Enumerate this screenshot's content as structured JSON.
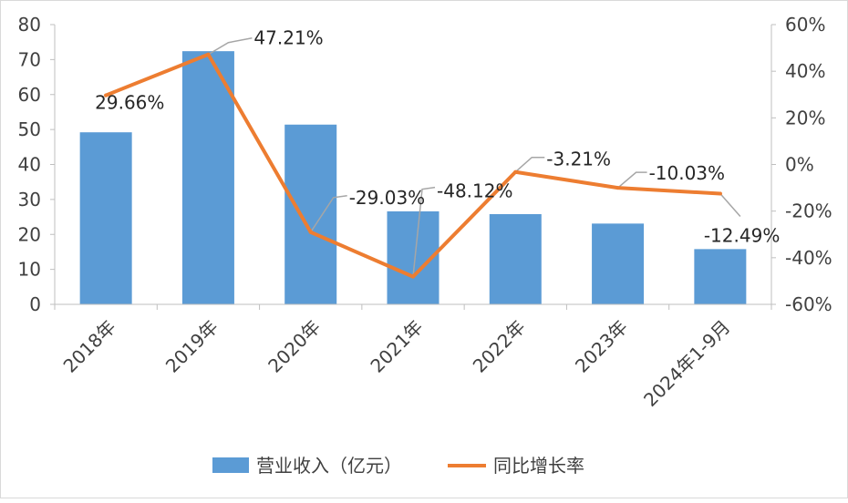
{
  "chart_data": {
    "type": "bar+line",
    "categories": [
      "2018年",
      "2019年",
      "2020年",
      "2021年",
      "2022年",
      "2023年",
      "2024年1-9月"
    ],
    "series": [
      {
        "name": "营业收入（亿元）",
        "type": "bar",
        "axis": "left",
        "color": "#5b9bd5",
        "values": [
          49.2,
          72.4,
          51.4,
          26.6,
          25.8,
          23.1,
          15.8
        ]
      },
      {
        "name": "同比增长率",
        "type": "line",
        "axis": "right",
        "color": "#ed7d31",
        "values": [
          29.66,
          47.21,
          -29.03,
          -48.12,
          -3.21,
          -10.03,
          -12.49
        ],
        "labels": [
          "29.66%",
          "47.21%",
          "-29.03%",
          "-48.12%",
          "-3.21%",
          "-10.03%",
          "-12.49%"
        ]
      }
    ],
    "y_left": {
      "ylim": [
        0,
        80
      ],
      "ticks": [
        "0",
        "10",
        "20",
        "30",
        "40",
        "50",
        "60",
        "70",
        "80"
      ]
    },
    "y_right": {
      "ylim": [
        -60,
        60
      ],
      "ticks": [
        "-60%",
        "-40%",
        "-20%",
        "0%",
        "20%",
        "40%",
        "60%"
      ]
    },
    "legend": "bottom",
    "grid": false
  }
}
